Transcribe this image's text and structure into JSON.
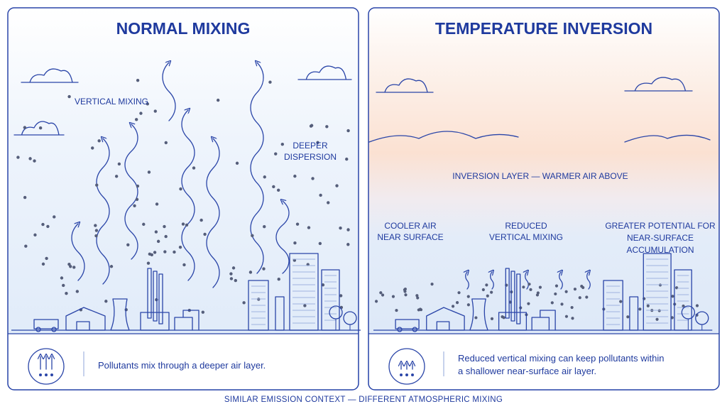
{
  "footer": "SIMILAR EMISSION CONTEXT — DIFFERENT ATMOSPHERIC MIXING",
  "panels": [
    {
      "title": "NORMAL MIXING",
      "labels": [
        {
          "lines": [
            "VERTICAL MIXING"
          ]
        },
        {
          "lines": [
            "DEEPER",
            "DISPERSION"
          ]
        }
      ],
      "caption": [
        "Pollutants mix through a deeper air layer."
      ]
    },
    {
      "title": "TEMPERATURE INVERSION",
      "labels": [
        {
          "lines": [
            "INVERSION LAYER — WARMER AIR ABOVE"
          ]
        },
        {
          "lines": [
            "COOLER AIR",
            "NEAR SURFACE"
          ]
        },
        {
          "lines": [
            "REDUCED",
            "VERTICAL MIXING"
          ]
        },
        {
          "lines": [
            "GREATER POTENTIAL FOR",
            "NEAR-SURFACE",
            "ACCUMULATION"
          ]
        }
      ],
      "caption": [
        "Reduced vertical mixing can keep pollutants within",
        "a shallower near-surface air layer."
      ]
    }
  ]
}
